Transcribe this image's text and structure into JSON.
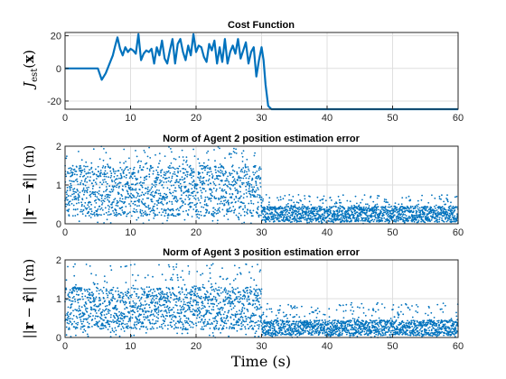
{
  "xlabel": "Time (s)",
  "chart_data": [
    {
      "type": "line",
      "title": "Cost Function",
      "ylabel": "J_est(x)",
      "xlim": [
        0,
        60
      ],
      "ylim": [
        -25,
        22
      ],
      "xticks": [
        0,
        10,
        20,
        30,
        40,
        50,
        60
      ],
      "yticks": [
        -20,
        0,
        20
      ],
      "grid": true,
      "color": "#0072BD",
      "series": [
        {
          "x": [
            0,
            5.0,
            5.6,
            6.2,
            6.8,
            7.3,
            7.6,
            8.0,
            8.4,
            8.8,
            9.2,
            9.6,
            10.0,
            10.4,
            10.8,
            11.2,
            11.6,
            12.0,
            12.4,
            12.8,
            13.2,
            13.6,
            14.0,
            14.4,
            14.8,
            15.2,
            15.6,
            16.0,
            16.4,
            16.8,
            17.2,
            17.6,
            18.0,
            18.4,
            18.8,
            19.2,
            19.6,
            20.0,
            20.4,
            20.8,
            21.2,
            21.6,
            22.0,
            22.4,
            22.8,
            23.2,
            23.6,
            24.0,
            24.4,
            24.8,
            25.2,
            25.6,
            26.0,
            26.4,
            26.8,
            27.2,
            27.6,
            28.0,
            28.4,
            28.8,
            29.2,
            29.6,
            30.0,
            30.3,
            30.6,
            31.0,
            31.5,
            32.0,
            40.0,
            50.0,
            60.0
          ],
          "y": [
            0,
            0,
            -7,
            -3,
            3,
            8,
            13,
            19,
            12,
            8,
            13,
            10,
            12,
            11,
            9,
            21,
            5,
            9,
            11,
            10,
            12,
            3,
            13,
            8,
            17,
            6,
            3,
            11,
            18,
            3,
            15,
            18,
            10,
            5,
            14,
            8,
            21,
            10,
            14,
            13,
            7,
            4,
            15,
            11,
            17,
            3,
            13,
            4,
            18,
            3,
            10,
            14,
            9,
            18,
            6,
            11,
            16,
            3,
            10,
            13,
            -5,
            5,
            13,
            5,
            -10,
            -23,
            -25,
            -25,
            -25,
            -25,
            -25
          ]
        }
      ]
    },
    {
      "type": "scatter",
      "title": "Norm of Agent 2 position estimation error",
      "ylabel": "||r − r̂|| (m)",
      "xlim": [
        0,
        60
      ],
      "ylim": [
        0,
        2
      ],
      "xticks": [
        0,
        10,
        20,
        30,
        40,
        50,
        60
      ],
      "yticks": [
        0,
        1,
        2
      ],
      "grid": true,
      "color": "#0072BD",
      "x_step": 0.02,
      "segments": [
        {
          "x_range": [
            0,
            30
          ],
          "y_range": [
            0,
            2.0
          ],
          "y_typical": [
            0.2,
            1.5
          ]
        },
        {
          "x_range": [
            30,
            60
          ],
          "y_range": [
            0,
            0.75
          ],
          "y_typical": [
            0.05,
            0.45
          ]
        }
      ]
    },
    {
      "type": "scatter",
      "title": "Norm of Agent 3 position estimation error",
      "ylabel": "||r − r̂|| (m)",
      "xlim": [
        0,
        60
      ],
      "ylim": [
        0,
        2
      ],
      "xticks": [
        0,
        10,
        20,
        30,
        40,
        50,
        60
      ],
      "yticks": [
        0,
        1,
        2
      ],
      "grid": true,
      "color": "#0072BD",
      "x_step": 0.02,
      "segments": [
        {
          "x_range": [
            0,
            30
          ],
          "y_range": [
            0,
            1.9
          ],
          "y_typical": [
            0.2,
            1.3
          ]
        },
        {
          "x_range": [
            30,
            60
          ],
          "y_range": [
            0,
            0.9
          ],
          "y_typical": [
            0.05,
            0.45
          ]
        }
      ]
    }
  ]
}
